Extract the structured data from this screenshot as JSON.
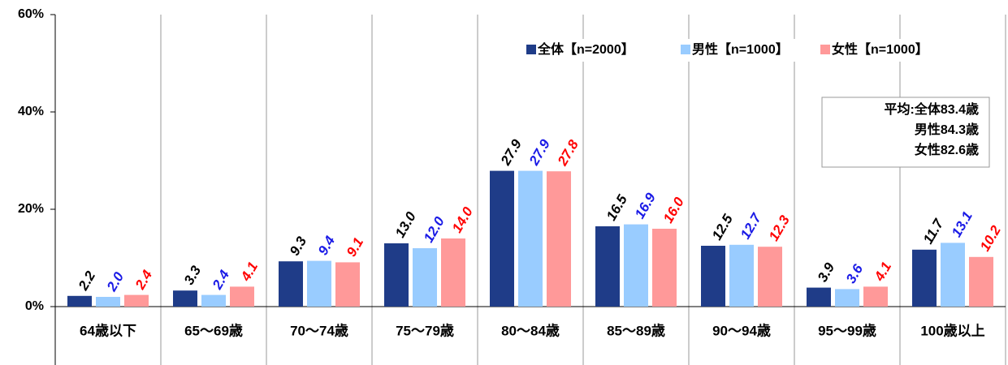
{
  "chart_data": {
    "type": "bar",
    "categories": [
      "64歳以下",
      "65～69歳",
      "70～74歳",
      "75～79歳",
      "80～84歳",
      "85～89歳",
      "90～94歳",
      "95～99歳",
      "100歳以上"
    ],
    "series": [
      {
        "name": "全体【n=2000】",
        "color": "#1f3c88",
        "label_color": "#000000",
        "values": [
          2.2,
          3.3,
          9.3,
          13.0,
          27.9,
          16.5,
          12.5,
          3.9,
          11.7
        ],
        "value_labels": [
          "2.2",
          "3.3",
          "9.3",
          "13.0",
          "27.9",
          "16.5",
          "12.5",
          "3.9",
          "11.7"
        ]
      },
      {
        "name": "男性【n=1000】",
        "color": "#99ccff",
        "label_color": "#1a1ae6",
        "values": [
          2.0,
          2.4,
          9.4,
          12.0,
          27.9,
          16.9,
          12.7,
          3.6,
          13.1
        ],
        "value_labels": [
          "2.0",
          "2.4",
          "9.4",
          "12.0",
          "27.9",
          "16.9",
          "12.7",
          "3.6",
          "13.1"
        ]
      },
      {
        "name": "女性【n=1000】",
        "color": "#ff9999",
        "label_color": "#ff0000",
        "values": [
          2.4,
          4.1,
          9.1,
          14.0,
          27.8,
          16.0,
          12.3,
          4.1,
          10.2
        ],
        "value_labels": [
          "2.4",
          "4.1",
          "9.1",
          "14.0",
          "27.8",
          "16.0",
          "12.3",
          "4.1",
          "10.2"
        ]
      }
    ],
    "ylim": [
      0,
      60
    ],
    "yticks": [
      {
        "value": 0,
        "label": "0%"
      },
      {
        "value": 20,
        "label": "20%"
      },
      {
        "value": 40,
        "label": "40%"
      },
      {
        "value": 60,
        "label": "60%"
      }
    ],
    "grid": false,
    "legend": "top-right",
    "annotation": [
      "平均:全体83.4歳",
      "男性84.3歳",
      "女性82.6歳"
    ]
  }
}
